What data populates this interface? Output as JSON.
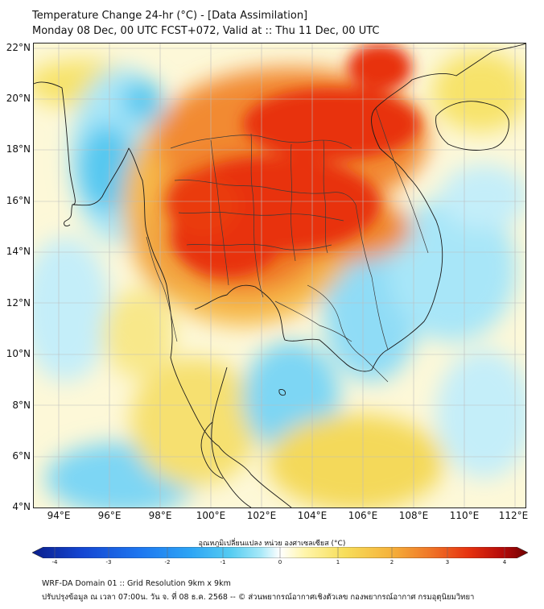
{
  "title_line1": "Temperature Change 24-hr (°C) - [Data Assimilation]",
  "title_line2": "Monday 08 Dec, 00 UTC FCST+072, Valid at :: Thu 11 Dec, 00 UTC",
  "map": {
    "lon_range": [
      93,
      112.5
    ],
    "lat_range": [
      4,
      22.2
    ],
    "lat_ticks": [
      "22°N",
      "20°N",
      "18°N",
      "16°N",
      "14°N",
      "12°N",
      "10°N",
      "8°N",
      "6°N",
      "4°N"
    ],
    "lon_ticks": [
      "94°E",
      "96°E",
      "98°E",
      "100°E",
      "102°E",
      "104°E",
      "106°E",
      "108°E",
      "110°E",
      "112°E"
    ]
  },
  "colorbar": {
    "title": "อุณหภูมิเปลี่ยนแปลง หน่วย องศาเซลเซียส (°C)",
    "range": [
      -4,
      4
    ],
    "tick_labels": [
      "-4",
      "-3",
      "-2",
      "-1",
      "0",
      "1",
      "2",
      "3",
      "4"
    ],
    "colors": [
      "#0a1e8c",
      "#1446d2",
      "#1e78f0",
      "#2da5f5",
      "#55ccf2",
      "#a5e8f8",
      "#ffffff",
      "#fff5aa",
      "#f7de5a",
      "#f5b43c",
      "#f07828",
      "#e6320f",
      "#b40a0a",
      "#6e0000"
    ]
  },
  "footer_line1": "WRF-DA Domain 01 :: Grid Resolution 9km x 9km",
  "footer_line2": "ปรับปรุงข้อมูล ณ เวลา 07:00น. วัน จ. ที่ 08 ธ.ค. 2568 -- © ส่วนพยากรณ์อากาศเชิงตัวเลข กองพยากรณ์อากาศ กรมอุตุนิยมวิทยา"
}
